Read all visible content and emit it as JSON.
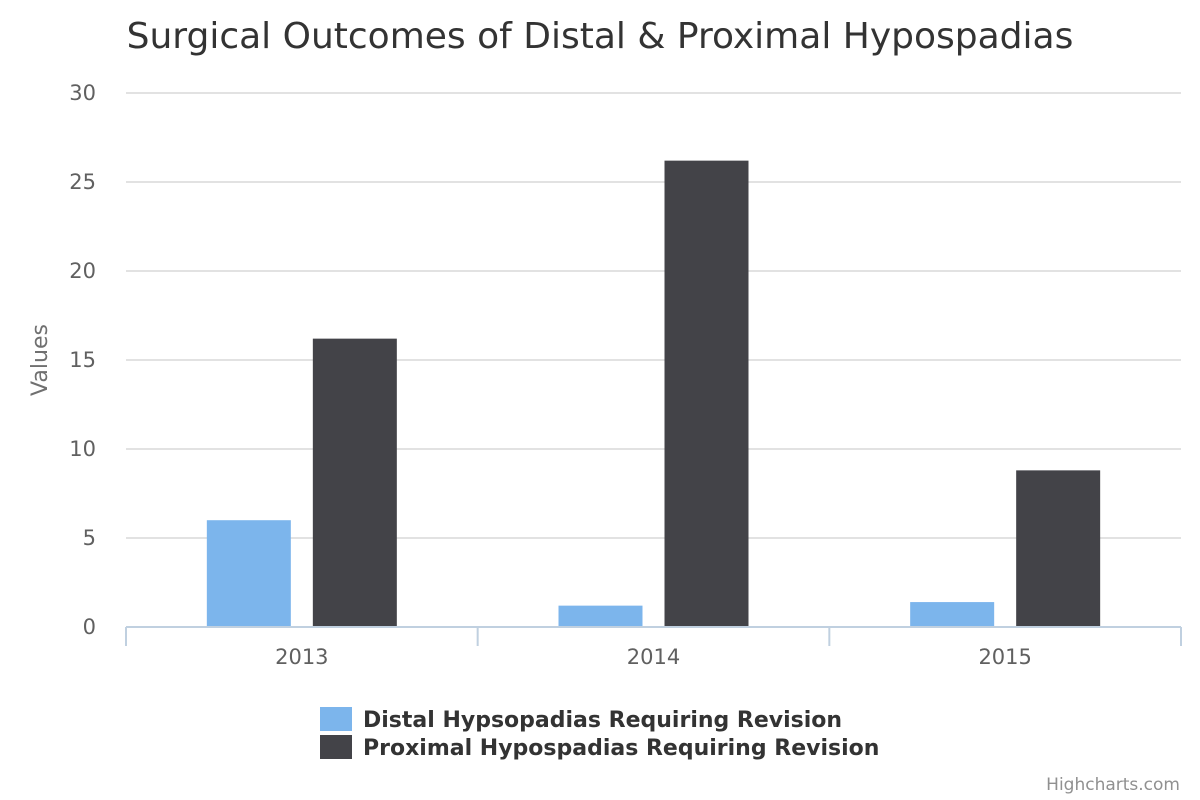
{
  "chart_data": {
    "type": "bar",
    "title": "Surgical Outcomes of Distal & Proximal Hypospadias",
    "xlabel": "",
    "ylabel": "Values",
    "categories": [
      "2013",
      "2014",
      "2015"
    ],
    "series": [
      {
        "name": "Distal Hypsopadias Requiring Revision",
        "values": [
          6.0,
          1.2,
          1.4
        ],
        "color": "#7cb5ec"
      },
      {
        "name": "Proximal Hypospadias Requiring Revision",
        "values": [
          16.2,
          26.2,
          8.8
        ],
        "color": "#434348"
      }
    ],
    "ylim": [
      0,
      30
    ],
    "yticks": [
      0,
      5,
      10,
      15,
      20,
      25,
      30
    ],
    "grid": true,
    "legend_position": "bottom-center"
  },
  "credits": "Highcharts.com"
}
